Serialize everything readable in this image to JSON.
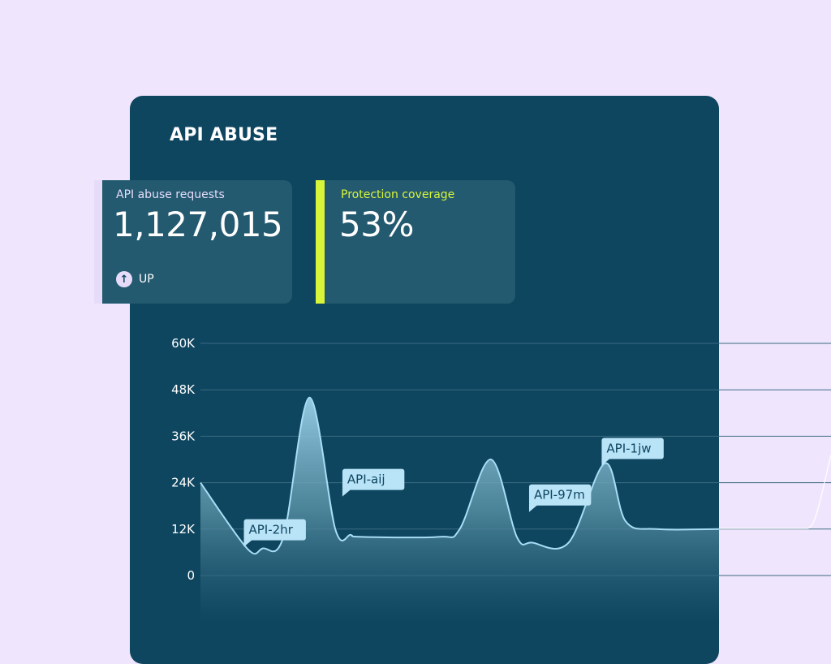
{
  "title": "API ABUSE",
  "stats": [
    {
      "label": "API abuse requests",
      "value": "1,127,015",
      "trend": "UP",
      "accent": "#e6dcfa"
    },
    {
      "label": "Protection coverage",
      "value": "53%",
      "accent": "#d8f53a"
    }
  ],
  "icons": {
    "trend": "arrow-up-icon"
  },
  "chart_data": {
    "type": "area",
    "ylim": [
      0,
      60000
    ],
    "yticks": [
      0,
      12000,
      24000,
      36000,
      48000,
      60000
    ],
    "ytick_labels": [
      "0",
      "12K",
      "24K",
      "36K",
      "48K",
      "60K"
    ],
    "grid": true,
    "series": [
      {
        "x": [
          0,
          9,
          12,
          16,
          21,
          26,
          29,
          31,
          46,
          50,
          56,
          61,
          64,
          71,
          78,
          82,
          88,
          100
        ],
        "y": [
          24000,
          7000,
          7000,
          10000,
          46000,
          12000,
          10500,
          10000,
          10000,
          12000,
          30000,
          10000,
          8500,
          8500,
          29000,
          14000,
          12000,
          12000
        ]
      }
    ],
    "annotations": [
      {
        "label": "API-2hr",
        "x": 9,
        "y": 7000
      },
      {
        "label": "API-aij",
        "x": 28,
        "y": 20000
      },
      {
        "label": "API-97m",
        "x": 64,
        "y": 16000
      },
      {
        "label": "API-1jw",
        "x": 78,
        "y": 28000
      }
    ],
    "colors": {
      "line": "#a8ddf5",
      "grid": "#3b6b80",
      "label_bg": "#b9e3f7",
      "label_text": "#0e4660"
    }
  }
}
